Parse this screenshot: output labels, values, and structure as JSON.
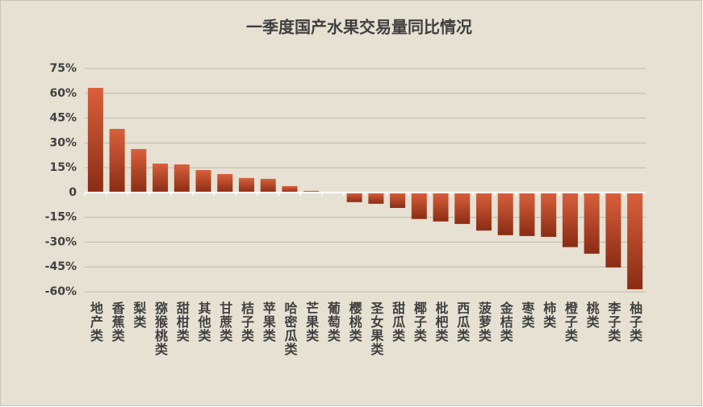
{
  "chart_data": {
    "type": "bar",
    "title": "一季度国产水果交易量同比情况",
    "categories": [
      "地产类",
      "香蕉类",
      "梨类",
      "猕猴桃类",
      "甜柑类",
      "其他类",
      "甘蔗类",
      "桔子类",
      "苹果类",
      "哈密瓜类",
      "芒果类",
      "葡萄类",
      "樱桃类",
      "圣女果类",
      "甜瓜类",
      "椰子类",
      "枇杷类",
      "西瓜类",
      "菠萝类",
      "金桔类",
      "枣类",
      "柿类",
      "橙子类",
      "桃类",
      "李子类",
      "柚子类"
    ],
    "values": [
      63.3,
      38.5,
      26.3,
      17.5,
      17,
      13.6,
      11.2,
      8.8,
      8.3,
      3.9,
      1,
      0,
      -5.8,
      -6.8,
      -9.3,
      -16,
      -17.5,
      -19,
      -23,
      -25.8,
      -26.3,
      -26.8,
      -33,
      -37,
      -45.3,
      -58.5
    ],
    "color": "#d4603c",
    "ylim": [
      -60,
      75
    ],
    "yticks": [
      {
        "value": 75,
        "label": "75%"
      },
      {
        "value": 60,
        "label": "60%"
      },
      {
        "value": 45,
        "label": "45%"
      },
      {
        "value": 30,
        "label": "30%"
      },
      {
        "value": 15,
        "label": "15%"
      },
      {
        "value": 0,
        "label": "0"
      },
      {
        "value": -15,
        "label": "-15%"
      },
      {
        "value": -30,
        "label": "-30%"
      },
      {
        "value": -45,
        "label": "-45%"
      },
      {
        "value": -60,
        "label": "-60%"
      }
    ],
    "grid": true
  }
}
